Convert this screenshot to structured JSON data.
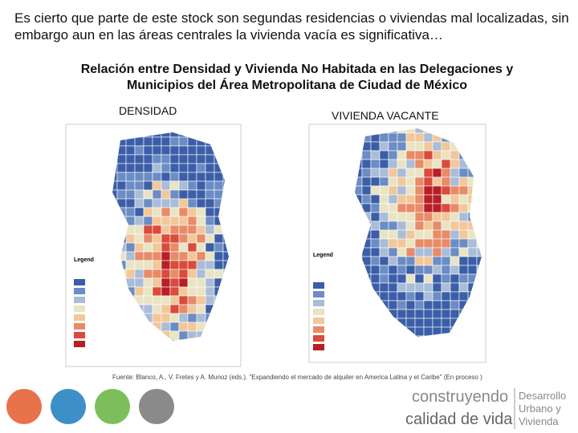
{
  "header": {
    "text": "Es cierto que parte de este stock son segundas residencias o viviendas mal localizadas, sin embargo aun en las áreas centrales la vivienda vacía es significativa…"
  },
  "title": "Relación entre Densidad y Vivienda No Habitada en las Delegaciones y Municipios del Área Metropolitana de Ciudad de México",
  "maps": [
    {
      "label": "DENSIDAD",
      "legend": "Legend"
    },
    {
      "label": "VIVIENDA VACANTE",
      "legend": "Legend"
    }
  ],
  "source": "Fuente: Blanco, A., V. Fretes y A. Munoz (eds.). \"Expandiendo el mercado de alquiler en America Latina y el Caribe\" (En proceso )",
  "logo": {
    "line1": "construyendo",
    "line2": "calidad de vida",
    "side": [
      "Desarrollo",
      "Urbano y",
      "Vivienda"
    ]
  }
}
